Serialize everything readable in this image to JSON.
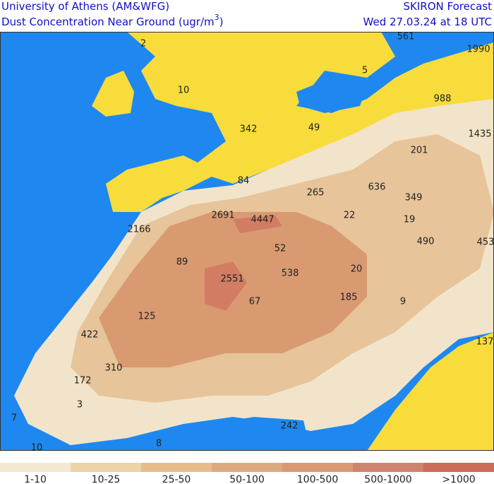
{
  "header": {
    "left": [
      "University of Athens (AM&WFG)",
      "Dust Concentration Near Ground (ugr/m",
      "3",
      ")"
    ],
    "right": [
      "SKIRON Forecast",
      "Wed 27.03.24 at 18 UTC"
    ]
  },
  "map_labels": [
    "561",
    "1990",
    "2",
    "5",
    "10",
    "988",
    "342",
    "49",
    "1435",
    "201",
    "84",
    "265",
    "636",
    "349",
    "2691",
    "4447",
    "22",
    "19",
    "2166",
    "490",
    "453",
    "52",
    "89",
    "20",
    "538",
    "2551",
    "185",
    "9",
    "67",
    "125",
    "422",
    "137",
    "310",
    "172",
    "3",
    "7",
    "242",
    "10",
    "8"
  ],
  "legend": {
    "labels": [
      "1-10",
      "10-25",
      "25-50",
      "50-100",
      "100-500",
      "500-1000",
      ">1000"
    ],
    "colors": [
      "#f3e8d2",
      "#ecd3a8",
      "#e7bd8c",
      "#ddaa80",
      "#d99a72",
      "#cf8470",
      "#cd6b5a"
    ]
  }
}
